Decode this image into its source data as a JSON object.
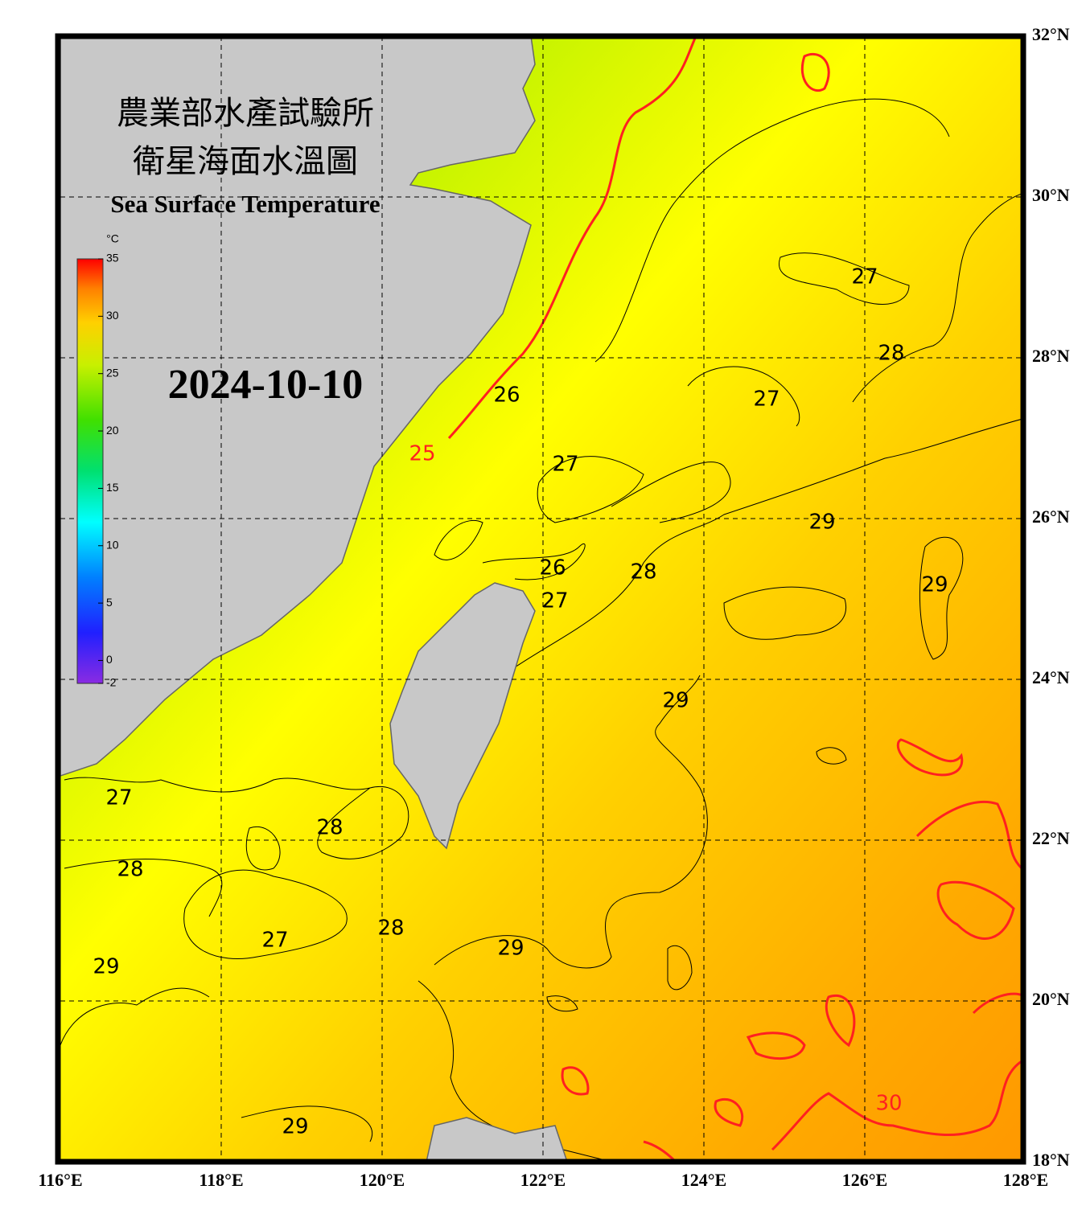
{
  "map": {
    "title_zh_1": "農業部水產試驗所",
    "title_zh_2": "衛星海面水溫圖",
    "title_en": "Sea Surface Temperature",
    "date": "2024-10-10",
    "lonlim": [
      116,
      128
    ],
    "latlim": [
      18,
      32
    ],
    "lon_ticks": [
      {
        "value": 116,
        "label": "116°E"
      },
      {
        "value": 118,
        "label": "118°E"
      },
      {
        "value": 120,
        "label": "120°E"
      },
      {
        "value": 122,
        "label": "122°E"
      },
      {
        "value": 124,
        "label": "124°E"
      },
      {
        "value": 126,
        "label": "126°E"
      },
      {
        "value": 128,
        "label": "128°E"
      }
    ],
    "lat_ticks": [
      {
        "value": 18,
        "label": "18°N"
      },
      {
        "value": 20,
        "label": "20°N"
      },
      {
        "value": 22,
        "label": "22°N"
      },
      {
        "value": 24,
        "label": "24°N"
      },
      {
        "value": 26,
        "label": "26°N"
      },
      {
        "value": 28,
        "label": "28°N"
      },
      {
        "value": 30,
        "label": "30°N"
      },
      {
        "value": 32,
        "label": "32°N"
      }
    ],
    "colorbar": {
      "unit": "°C",
      "lim": [
        -2,
        35
      ],
      "ticks": [
        -2,
        0,
        5,
        10,
        15,
        20,
        25,
        30,
        35
      ]
    },
    "contour_labels": [
      {
        "value": 27,
        "lon": 126.0,
        "lat": 29.0,
        "color": "#000000"
      },
      {
        "value": 28,
        "lon": 126.33,
        "lat": 28.05,
        "color": "#000000"
      },
      {
        "value": 27,
        "lon": 124.78,
        "lat": 27.48,
        "color": "#000000"
      },
      {
        "value": 26,
        "lon": 121.55,
        "lat": 27.53,
        "color": "#000000"
      },
      {
        "value": 25,
        "lon": 120.5,
        "lat": 26.8,
        "color": "#ff2020"
      },
      {
        "value": 27,
        "lon": 122.28,
        "lat": 26.67,
        "color": "#000000"
      },
      {
        "value": 29,
        "lon": 125.47,
        "lat": 25.95,
        "color": "#000000"
      },
      {
        "value": 26,
        "lon": 122.12,
        "lat": 25.38,
        "color": "#000000"
      },
      {
        "value": 27,
        "lon": 122.15,
        "lat": 24.97,
        "color": "#000000"
      },
      {
        "value": 28,
        "lon": 123.25,
        "lat": 25.33,
        "color": "#000000"
      },
      {
        "value": 29,
        "lon": 126.87,
        "lat": 25.17,
        "color": "#000000"
      },
      {
        "value": 29,
        "lon": 123.65,
        "lat": 23.73,
        "color": "#000000"
      },
      {
        "value": 27,
        "lon": 116.73,
        "lat": 22.52,
        "color": "#000000"
      },
      {
        "value": 28,
        "lon": 119.35,
        "lat": 22.15,
        "color": "#000000"
      },
      {
        "value": 28,
        "lon": 116.87,
        "lat": 21.63,
        "color": "#000000"
      },
      {
        "value": 27,
        "lon": 118.67,
        "lat": 20.75,
        "color": "#000000"
      },
      {
        "value": 28,
        "lon": 120.11,
        "lat": 20.9,
        "color": "#000000"
      },
      {
        "value": 29,
        "lon": 121.6,
        "lat": 20.65,
        "color": "#000000"
      },
      {
        "value": 29,
        "lon": 116.57,
        "lat": 20.42,
        "color": "#000000"
      },
      {
        "value": 29,
        "lon": 118.92,
        "lat": 18.43,
        "color": "#000000"
      },
      {
        "value": 30,
        "lon": 126.3,
        "lat": 18.72,
        "color": "#ff2020"
      }
    ]
  }
}
